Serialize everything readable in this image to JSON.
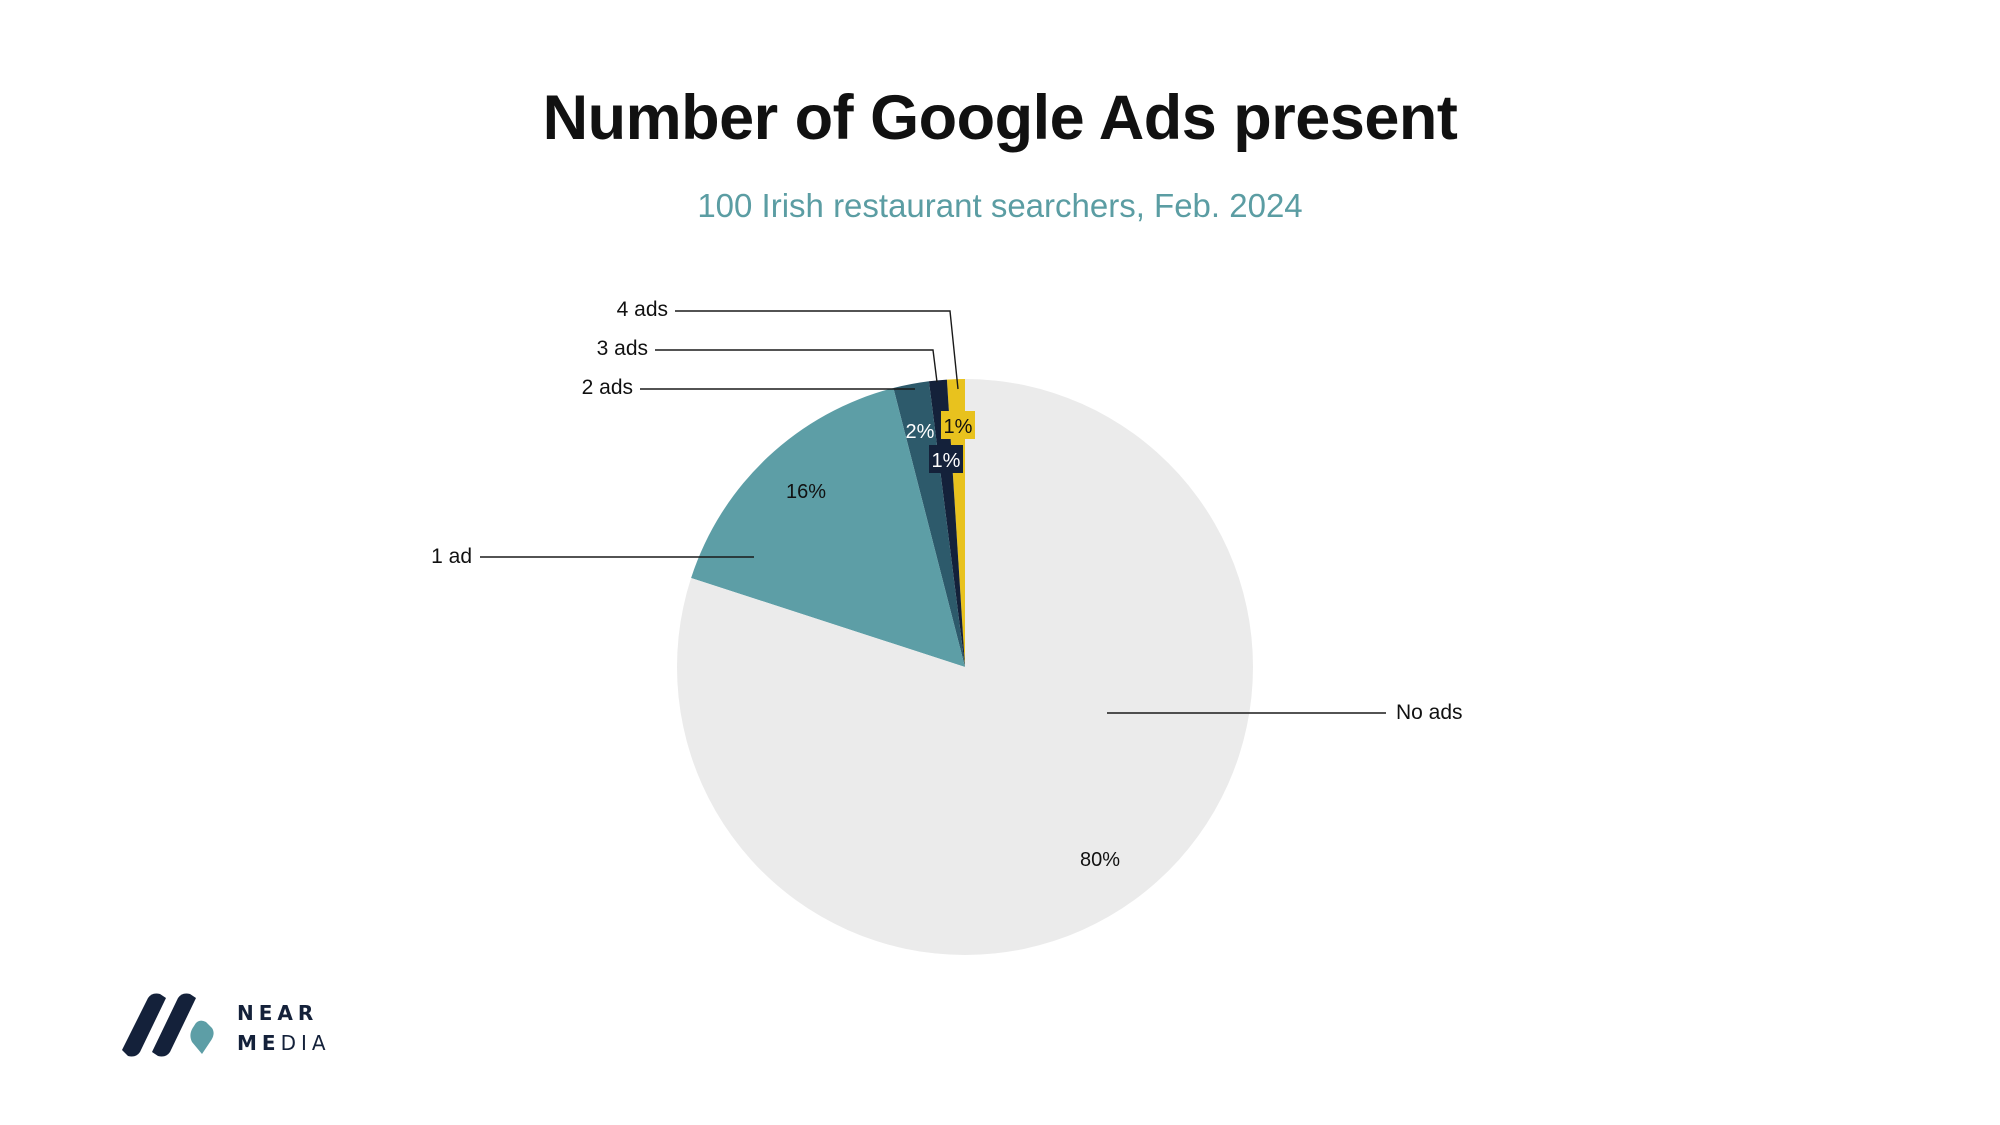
{
  "chart_data": {
    "type": "pie",
    "title": "Number of Google Ads present",
    "subtitle": "100 Irish restaurant searchers, Feb. 2024",
    "slices": [
      {
        "label": "4 ads",
        "value": 1,
        "pct_label": "1%",
        "color": "#e8c21e",
        "label_color": "#111111"
      },
      {
        "label": "3 ads",
        "value": 1,
        "pct_label": "1%",
        "color": "#14213a",
        "label_color": "#ffffff"
      },
      {
        "label": "2 ads",
        "value": 2,
        "pct_label": "2%",
        "color": "#2d5a6b",
        "label_color": "#ffffff"
      },
      {
        "label": "1 ad",
        "value": 16,
        "pct_label": "16%",
        "color": "#5d9ea6",
        "label_color": "#111111"
      },
      {
        "label": "No ads",
        "value": 80,
        "pct_label": "80%",
        "color": "#ebebeb",
        "label_color": "#111111"
      }
    ]
  },
  "logo": {
    "line1": "NEAR",
    "line2_bold": "ME",
    "line2_light": "DIA"
  },
  "colors": {
    "logo_dark": "#14213a",
    "logo_teal": "#5d9ea6",
    "subtitle": "#5b9da3"
  }
}
